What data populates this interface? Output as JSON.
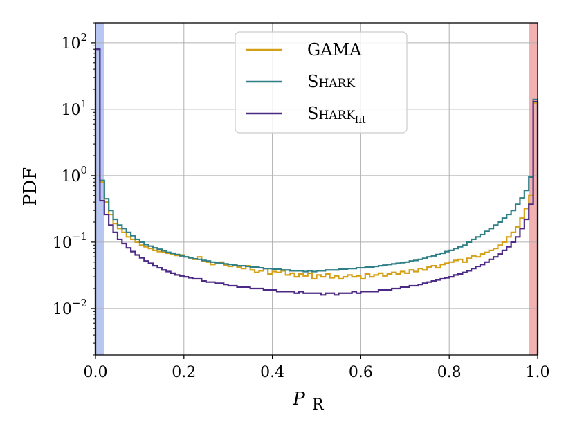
{
  "chart_data": {
    "type": "step-histogram",
    "xlabel": "P",
    "xlabel_subscript": "R",
    "ylabel": "PDF",
    "xlim": [
      0,
      1
    ],
    "ylim": [
      0.002,
      200
    ],
    "yscale": "log",
    "grid": true,
    "legend_position": "top-center",
    "xticks": [
      0.0,
      0.2,
      0.4,
      0.6,
      0.8,
      1.0
    ],
    "xtick_labels": [
      "0.0",
      "0.2",
      "0.4",
      "0.6",
      "0.8",
      "1.0"
    ],
    "yticks": [
      0.01,
      0.1,
      1,
      10,
      100
    ],
    "ytick_labels": [
      {
        "base": "10",
        "exp": "−2"
      },
      {
        "base": "10",
        "exp": "−1"
      },
      {
        "base": "10",
        "exp": "0"
      },
      {
        "base": "10",
        "exp": "1"
      },
      {
        "base": "10",
        "exp": "2"
      }
    ],
    "shaded_regions": [
      {
        "name": "low",
        "x": [
          0,
          0.02
        ],
        "color": "#b7c7f2"
      },
      {
        "name": "high",
        "x": [
          0.98,
          1.0
        ],
        "color": "#f2b0b0"
      }
    ],
    "bin_width": 0.01,
    "series": [
      {
        "name": "GAMA",
        "legend_label": "GAMA",
        "legend_subscript": "",
        "color": "#d4a017",
        "values": [
          80,
          0.8,
          0.4,
          0.26,
          0.19,
          0.16,
          0.14,
          0.12,
          0.11,
          0.1,
          0.09,
          0.085,
          0.08,
          0.075,
          0.072,
          0.07,
          0.068,
          0.065,
          0.063,
          0.064,
          0.06,
          0.058,
          0.055,
          0.06,
          0.052,
          0.05,
          0.046,
          0.048,
          0.05,
          0.045,
          0.043,
          0.046,
          0.042,
          0.04,
          0.044,
          0.038,
          0.035,
          0.037,
          0.04,
          0.033,
          0.036,
          0.035,
          0.037,
          0.032,
          0.034,
          0.03,
          0.033,
          0.031,
          0.034,
          0.028,
          0.032,
          0.03,
          0.033,
          0.029,
          0.031,
          0.028,
          0.03,
          0.032,
          0.03,
          0.031,
          0.028,
          0.033,
          0.03,
          0.032,
          0.034,
          0.031,
          0.033,
          0.035,
          0.033,
          0.036,
          0.034,
          0.038,
          0.036,
          0.04,
          0.038,
          0.042,
          0.044,
          0.041,
          0.046,
          0.048,
          0.05,
          0.053,
          0.055,
          0.05,
          0.057,
          0.062,
          0.06,
          0.066,
          0.07,
          0.075,
          0.08,
          0.09,
          0.1,
          0.12,
          0.14,
          0.17,
          0.23,
          0.32,
          0.5,
          12.5
        ]
      },
      {
        "name": "SHARK",
        "legend_label": "Shark",
        "legend_subscript": "",
        "color": "#2e7f86",
        "values": [
          80,
          0.85,
          0.45,
          0.3,
          0.22,
          0.18,
          0.16,
          0.14,
          0.125,
          0.11,
          0.1,
          0.092,
          0.087,
          0.082,
          0.078,
          0.074,
          0.07,
          0.068,
          0.065,
          0.062,
          0.06,
          0.058,
          0.056,
          0.055,
          0.053,
          0.052,
          0.05,
          0.049,
          0.048,
          0.047,
          0.046,
          0.045,
          0.044,
          0.044,
          0.043,
          0.042,
          0.042,
          0.041,
          0.04,
          0.04,
          0.039,
          0.039,
          0.038,
          0.038,
          0.037,
          0.037,
          0.037,
          0.036,
          0.037,
          0.036,
          0.037,
          0.037,
          0.038,
          0.038,
          0.038,
          0.039,
          0.039,
          0.04,
          0.04,
          0.041,
          0.041,
          0.042,
          0.042,
          0.043,
          0.044,
          0.045,
          0.046,
          0.047,
          0.048,
          0.049,
          0.05,
          0.052,
          0.053,
          0.055,
          0.057,
          0.06,
          0.062,
          0.065,
          0.068,
          0.072,
          0.075,
          0.08,
          0.085,
          0.09,
          0.1,
          0.11,
          0.12,
          0.13,
          0.145,
          0.16,
          0.18,
          0.2,
          0.23,
          0.26,
          0.3,
          0.37,
          0.46,
          0.6,
          0.95,
          14
        ]
      },
      {
        "name": "SHARK_fit",
        "legend_label": "Shark",
        "legend_subscript": "fit",
        "color": "#4b2a85",
        "values": [
          80,
          0.42,
          0.26,
          0.18,
          0.14,
          0.11,
          0.095,
          0.082,
          0.072,
          0.064,
          0.058,
          0.052,
          0.048,
          0.044,
          0.041,
          0.038,
          0.036,
          0.034,
          0.032,
          0.031,
          0.03,
          0.029,
          0.028,
          0.028,
          0.026,
          0.025,
          0.025,
          0.024,
          0.024,
          0.023,
          0.022,
          0.022,
          0.021,
          0.021,
          0.021,
          0.02,
          0.02,
          0.02,
          0.019,
          0.019,
          0.019,
          0.018,
          0.018,
          0.018,
          0.018,
          0.017,
          0.018,
          0.017,
          0.017,
          0.017,
          0.017,
          0.016,
          0.017,
          0.017,
          0.016,
          0.017,
          0.017,
          0.017,
          0.018,
          0.017,
          0.018,
          0.018,
          0.018,
          0.018,
          0.019,
          0.019,
          0.019,
          0.02,
          0.02,
          0.021,
          0.021,
          0.022,
          0.022,
          0.023,
          0.024,
          0.025,
          0.026,
          0.027,
          0.028,
          0.029,
          0.03,
          0.032,
          0.033,
          0.035,
          0.037,
          0.04,
          0.043,
          0.046,
          0.05,
          0.055,
          0.06,
          0.066,
          0.075,
          0.085,
          0.1,
          0.12,
          0.16,
          0.22,
          0.37,
          13
        ]
      }
    ]
  }
}
